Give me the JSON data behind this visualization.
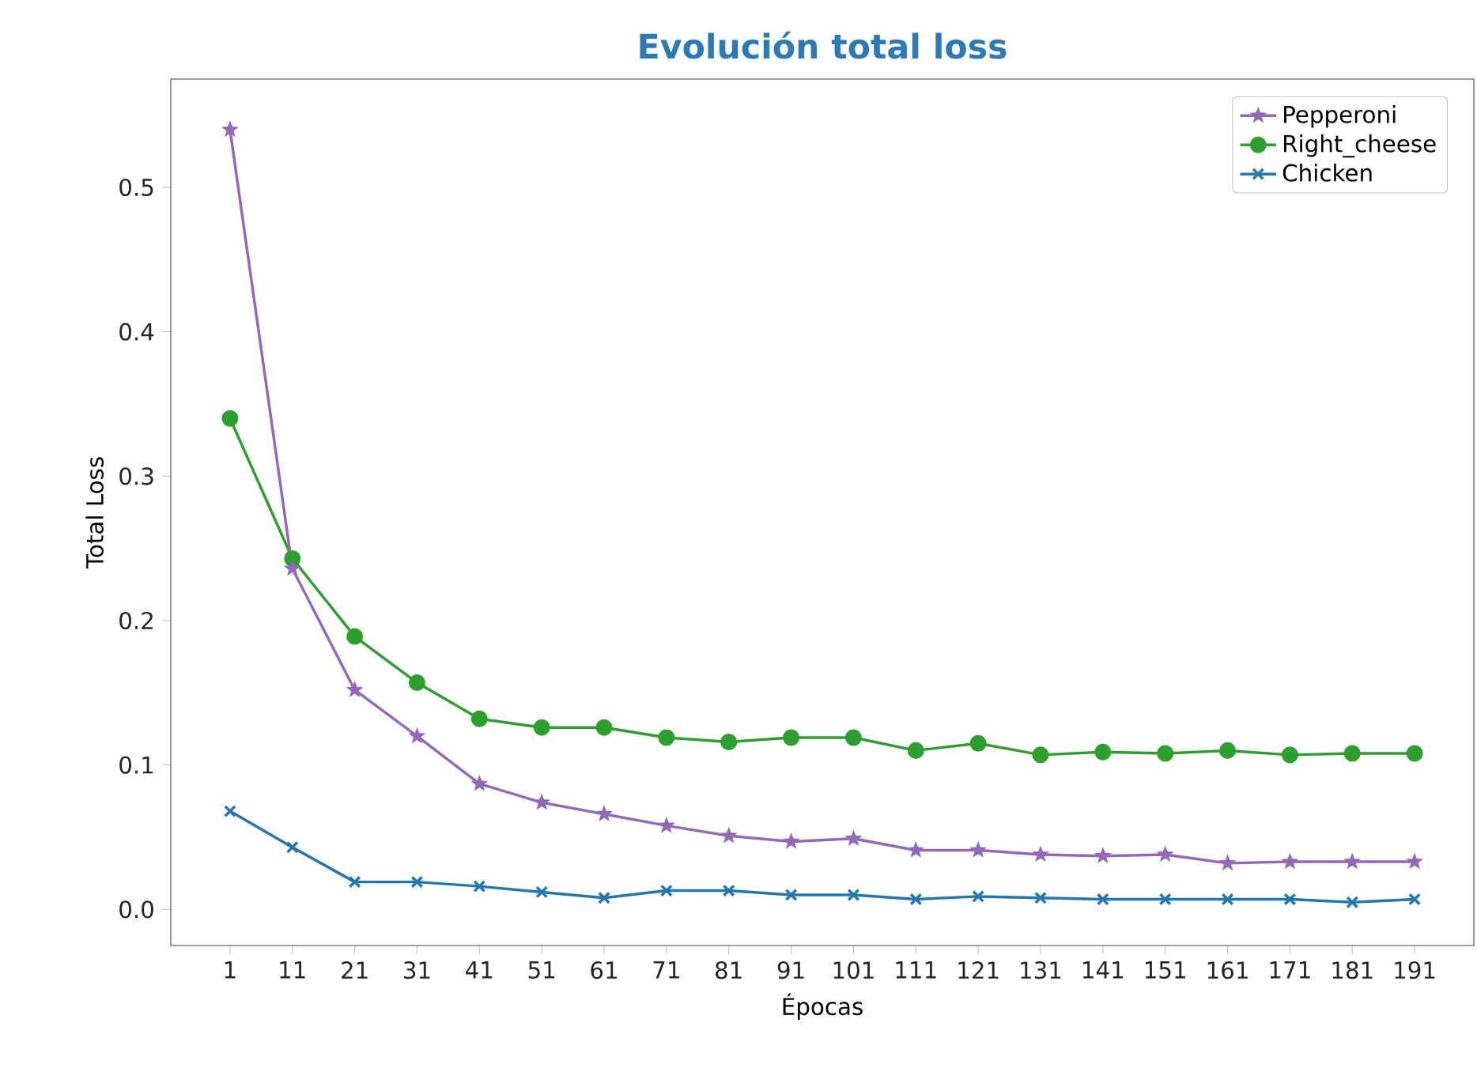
{
  "chart_data": {
    "type": "line",
    "title": "Evolución total loss",
    "xlabel": "Épocas",
    "ylabel": "Total Loss",
    "categories": [
      "1",
      "11",
      "21",
      "31",
      "41",
      "51",
      "61",
      "71",
      "81",
      "91",
      "101",
      "111",
      "121",
      "131",
      "141",
      "151",
      "161",
      "171",
      "181",
      "191"
    ],
    "series": [
      {
        "name": "Pepperoni",
        "color": "#9467bd",
        "marker": "star",
        "values": [
          0.54,
          0.236,
          0.152,
          0.12,
          0.087,
          0.074,
          0.066,
          0.058,
          0.051,
          0.047,
          0.049,
          0.041,
          0.041,
          0.038,
          0.037,
          0.038,
          0.032,
          0.033,
          0.033,
          0.033
        ]
      },
      {
        "name": "Right_cheese",
        "color": "#2ca02c",
        "marker": "circle",
        "values": [
          0.34,
          0.243,
          0.189,
          0.157,
          0.132,
          0.126,
          0.126,
          0.119,
          0.116,
          0.119,
          0.119,
          0.11,
          0.115,
          0.107,
          0.109,
          0.108,
          0.11,
          0.107,
          0.108,
          0.108
        ]
      },
      {
        "name": "Chicken",
        "color": "#1f77b4",
        "marker": "cross",
        "values": [
          0.068,
          0.043,
          0.019,
          0.019,
          0.016,
          0.012,
          0.008,
          0.013,
          0.013,
          0.01,
          0.01,
          0.007,
          0.009,
          0.008,
          0.007,
          0.007,
          0.007,
          0.007,
          0.005,
          0.007
        ]
      }
    ],
    "ylim": [
      -0.025,
      0.575
    ],
    "yticks": [
      {
        "value": 0,
        "label": "0.0"
      },
      {
        "value": 0.1,
        "label": "0.1"
      },
      {
        "value": 0.2,
        "label": "0.2"
      },
      {
        "value": 0.3,
        "label": "0.3"
      },
      {
        "value": 0.4,
        "label": "0.4"
      },
      {
        "value": 0.5,
        "label": "0.5"
      }
    ],
    "legend": "top right"
  }
}
